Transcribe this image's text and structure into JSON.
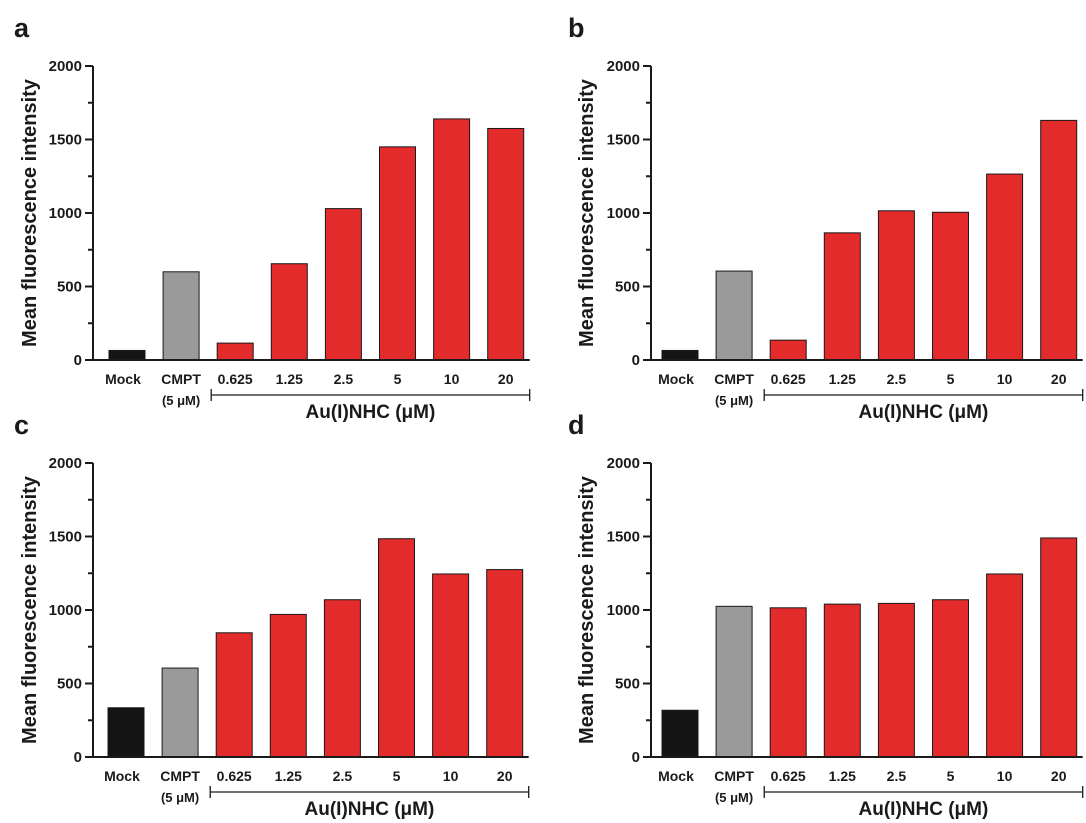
{
  "colors": {
    "control": "#141414",
    "reference": "#9a9a9a",
    "treatment": "#e32b2b",
    "axis": "#1a1a1a"
  },
  "chart_data": [
    {
      "type": "bar",
      "panel": "a",
      "ylabel": "Mean fluorescence intensity",
      "ylim": [
        0,
        2000
      ],
      "yticks": [
        "0",
        "500",
        "1000",
        "1500",
        "2000"
      ],
      "categories": [
        "Mock",
        "CMPT",
        "0.625",
        "1.25",
        "2.5",
        "5",
        "10",
        "20"
      ],
      "values": [
        65,
        600,
        115,
        655,
        1030,
        1450,
        1640,
        1575
      ],
      "reference_sublabel": "(5 μM)",
      "group_label": "Au(I)NHC (μM)"
    },
    {
      "type": "bar",
      "panel": "b",
      "ylabel": "Mean fluorescence intensity",
      "ylim": [
        0,
        2000
      ],
      "yticks": [
        "0",
        "500",
        "1000",
        "1500",
        "2000"
      ],
      "categories": [
        "Mock",
        "CMPT",
        "0.625",
        "1.25",
        "2.5",
        "5",
        "10",
        "20"
      ],
      "values": [
        65,
        605,
        135,
        865,
        1015,
        1005,
        1265,
        1630
      ],
      "reference_sublabel": "(5 μM)",
      "group_label": "Au(I)NHC (μM)"
    },
    {
      "type": "bar",
      "panel": "c",
      "ylabel": "Mean fluorescence intensity",
      "ylim": [
        0,
        2000
      ],
      "yticks": [
        "0",
        "500",
        "1000",
        "1500",
        "2000"
      ],
      "categories": [
        "Mock",
        "CMPT",
        "0.625",
        "1.25",
        "2.5",
        "5",
        "10",
        "20"
      ],
      "values": [
        335,
        605,
        845,
        970,
        1070,
        1485,
        1245,
        1275
      ],
      "reference_sublabel": "(5 μM)",
      "group_label": "Au(I)NHC (μM)"
    },
    {
      "type": "bar",
      "panel": "d",
      "ylabel": "Mean fluorescence intensity",
      "ylim": [
        0,
        2000
      ],
      "yticks": [
        "0",
        "500",
        "1000",
        "1500",
        "2000"
      ],
      "categories": [
        "Mock",
        "CMPT",
        "0.625",
        "1.25",
        "2.5",
        "5",
        "10",
        "20"
      ],
      "values": [
        318,
        1025,
        1015,
        1040,
        1045,
        1070,
        1245,
        1490
      ],
      "reference_sublabel": "(5 μM)",
      "group_label": "Au(I)NHC (μM)"
    }
  ]
}
